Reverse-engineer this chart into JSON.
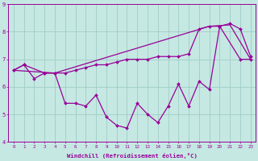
{
  "xlabel": "Windchill (Refroidissement éolien,°C)",
  "background_color": "#c5e8e2",
  "grid_color": "#a0ccc6",
  "line_color": "#990099",
  "x": [
    0,
    1,
    2,
    3,
    4,
    5,
    6,
    7,
    8,
    9,
    10,
    11,
    12,
    13,
    14,
    15,
    16,
    17,
    18,
    19,
    20,
    21,
    22,
    23
  ],
  "series1": [
    6.6,
    6.8,
    6.3,
    6.5,
    6.5,
    5.4,
    5.4,
    5.3,
    5.7,
    4.9,
    4.6,
    4.5,
    5.4,
    5.0,
    4.7,
    5.3,
    6.1,
    5.3,
    6.2,
    5.9,
    8.2,
    8.3,
    8.1,
    7.1
  ],
  "series2": [
    6.6,
    6.8,
    6.5,
    6.5,
    6.5,
    6.6,
    6.7,
    6.8,
    6.8,
    6.9,
    7.0,
    7.0,
    7.0,
    7.1,
    7.1,
    7.1,
    7.2,
    8.1,
    8.2,
    8.2,
    7.0,
    7.0
  ],
  "series2_x": [
    0,
    1,
    3,
    4,
    5,
    6,
    7,
    8,
    9,
    10,
    11,
    12,
    13,
    14,
    15,
    16,
    17,
    18,
    19,
    20,
    22,
    23
  ],
  "series3": [
    6.6,
    6.5,
    8.2,
    8.25,
    7.0
  ],
  "series3_x": [
    0,
    4,
    19,
    21,
    23
  ],
  "ylim": [
    4,
    9
  ],
  "xlim_min": -0.5,
  "xlim_max": 23.5,
  "yticks": [
    4,
    5,
    6,
    7,
    8,
    9
  ],
  "xticks": [
    0,
    1,
    2,
    3,
    4,
    5,
    6,
    7,
    8,
    9,
    10,
    11,
    12,
    13,
    14,
    15,
    16,
    17,
    18,
    19,
    20,
    21,
    22,
    23
  ]
}
